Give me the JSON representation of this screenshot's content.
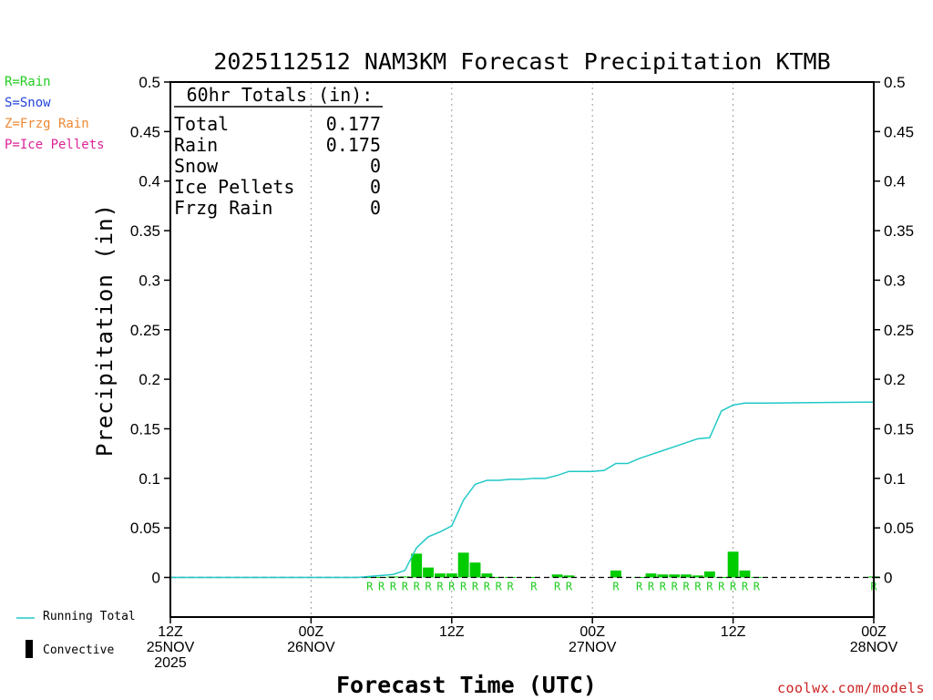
{
  "chart_data": {
    "type": "bar",
    "title": "2025112512 NAM3KM Forecast Precipitation KTMB",
    "xlabel": "Forecast Time (UTC)",
    "ylabel": "Precipitation (in)",
    "ylim": [
      -0.04,
      0.5
    ],
    "xlim_hours": [
      0,
      60
    ],
    "y_ticks": [
      "0",
      "0.05",
      "0.1",
      "0.15",
      "0.2",
      "0.25",
      "0.3",
      "0.35",
      "0.4",
      "0.45",
      "0.5"
    ],
    "x_ticks": [
      {
        "hour": 0,
        "line1": "12Z",
        "line2": "25NOV",
        "line3": "2025"
      },
      {
        "hour": 12,
        "line1": "00Z",
        "line2": "26NOV",
        "line3": ""
      },
      {
        "hour": 24,
        "line1": "12Z",
        "line2": "",
        "line3": ""
      },
      {
        "hour": 36,
        "line1": "00Z",
        "line2": "27NOV",
        "line3": ""
      },
      {
        "hour": 48,
        "line1": "12Z",
        "line2": "",
        "line3": ""
      },
      {
        "hour": 60,
        "line1": "00Z",
        "line2": "28NOV",
        "line3": ""
      }
    ],
    "grid_x": true,
    "grid_y": false,
    "hourly_precip": {
      "hours": [
        17,
        18,
        19,
        20,
        21,
        22,
        23,
        24,
        25,
        26,
        27,
        28,
        29,
        31,
        33,
        34,
        38,
        40,
        41,
        42,
        43,
        44,
        45,
        46,
        47,
        48,
        49,
        50,
        60
      ],
      "values": [
        0.0005,
        0.0005,
        0.001,
        0.001,
        0.024,
        0.01,
        0.004,
        0.004,
        0.025,
        0.015,
        0.004,
        0.0005,
        0.0005,
        0.0005,
        0.003,
        0.002,
        0.007,
        0.0005,
        0.004,
        0.003,
        0.003,
        0.003,
        0.002,
        0.006,
        0.0005,
        0.026,
        0.007,
        0.0005,
        0.001
      ],
      "ptype": [
        "R",
        "R",
        "R",
        "R",
        "R",
        "R",
        "R",
        "R",
        "R",
        "R",
        "R",
        "R",
        "R",
        "R",
        "R",
        "R",
        "R",
        "R",
        "R",
        "R",
        "R",
        "R",
        "R",
        "R",
        "R",
        "R",
        "R",
        "R",
        "R"
      ],
      "color": "#00cc00"
    },
    "running_total": {
      "name": "Running Total",
      "color": "#20c8c8",
      "hours": [
        0,
        16,
        17,
        18,
        19,
        20,
        21,
        22,
        23,
        24,
        25,
        26,
        27,
        28,
        29,
        30,
        31,
        32,
        33,
        34,
        35,
        36,
        37,
        38,
        39,
        40,
        41,
        42,
        43,
        44,
        45,
        46,
        47,
        48,
        49,
        50,
        51,
        60
      ],
      "values": [
        0,
        0,
        0.001,
        0.002,
        0.003,
        0.007,
        0.03,
        0.041,
        0.046,
        0.052,
        0.078,
        0.094,
        0.098,
        0.098,
        0.099,
        0.099,
        0.1,
        0.1,
        0.103,
        0.107,
        0.107,
        0.107,
        0.108,
        0.115,
        0.115,
        0.12,
        0.124,
        0.128,
        0.132,
        0.136,
        0.14,
        0.141,
        0.168,
        0.174,
        0.176,
        0.176,
        0.176,
        0.177
      ]
    },
    "totals_box": {
      "heading": "60hr Totals (in):",
      "rows": [
        {
          "label": "Total",
          "value": "0.177"
        },
        {
          "label": "Rain",
          "value": "0.175"
        },
        {
          "label": "Snow",
          "value": "0"
        },
        {
          "label": "Ice Pellets",
          "value": "0"
        },
        {
          "label": "Frzg Rain",
          "value": "0"
        }
      ]
    }
  },
  "ptype_legend": [
    {
      "text": "R=Rain",
      "color": "#22cc22"
    },
    {
      "text": "S=Snow",
      "color": "#2244dd"
    },
    {
      "text": "Z=Frzg Rain",
      "color": "#ee8833"
    },
    {
      "text": "P=Ice Pellets",
      "color": "#dd2299"
    }
  ],
  "series_legend": {
    "running_total": "Running Total",
    "convective": "Convective"
  },
  "credit": "coolwx.com/models"
}
